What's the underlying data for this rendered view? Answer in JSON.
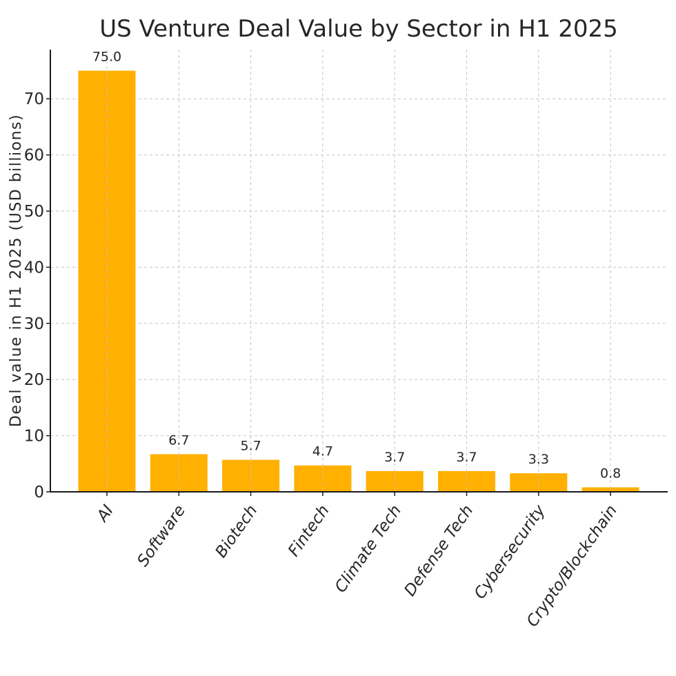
{
  "chart_data": {
    "type": "bar",
    "title": "US Venture Deal Value by Sector in H1 2025",
    "xlabel": "",
    "ylabel": "Deal value in H1 2025 (USD billions)",
    "categories": [
      "AI",
      "Software",
      "Biotech",
      "Fintech",
      "Climate Tech",
      "Defense Tech",
      "Cybersecurity",
      "Crypto/Blockchain"
    ],
    "values": [
      75.0,
      6.7,
      5.7,
      4.7,
      3.7,
      3.7,
      3.3,
      0.8
    ],
    "data_labels": [
      "75.0",
      "6.7",
      "5.7",
      "4.7",
      "3.7",
      "3.7",
      "3.3",
      "0.8"
    ],
    "ylim": [
      0,
      78.75
    ],
    "yticks": [
      0,
      10,
      20,
      30,
      40,
      50,
      60,
      70
    ],
    "grid": true,
    "bar_color": "#FFB000"
  }
}
